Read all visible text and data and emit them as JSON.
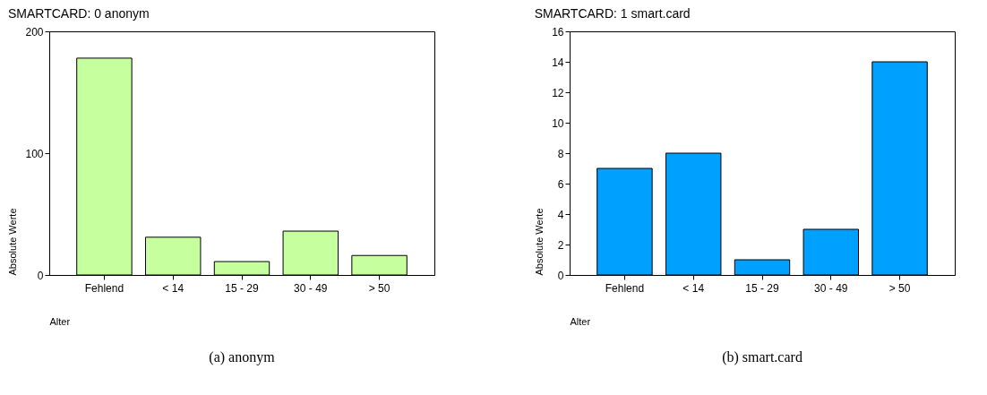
{
  "chart_data": [
    {
      "type": "bar",
      "title": "SMARTCARD:   0   anonym",
      "xlabel": "Alter",
      "ylabel": "Absolute Werte",
      "categories": [
        "Fehlend",
        "< 14",
        "15 - 29",
        "30 - 49",
        "> 50"
      ],
      "values": [
        178,
        31,
        11,
        36,
        16
      ],
      "color": "#c6ff9e",
      "ylim": [
        0,
        200
      ],
      "yticks": [
        0,
        100,
        200
      ],
      "grid": false,
      "legend": false,
      "annotations": [
        "(a) anonym"
      ]
    },
    {
      "type": "bar",
      "title": "SMARTCARD:   1   smart.card",
      "xlabel": "Alter",
      "ylabel": "Absolute Werte",
      "categories": [
        "Fehlend",
        "< 14",
        "15 - 29",
        "30 - 49",
        "> 50"
      ],
      "values": [
        7,
        8,
        1,
        3,
        14
      ],
      "color": "#00a0ff",
      "ylim": [
        0,
        16
      ],
      "yticks": [
        0,
        2,
        4,
        6,
        8,
        10,
        12,
        14,
        16
      ],
      "grid": false,
      "legend": false,
      "annotations": [
        "(b) smart.card"
      ]
    }
  ]
}
